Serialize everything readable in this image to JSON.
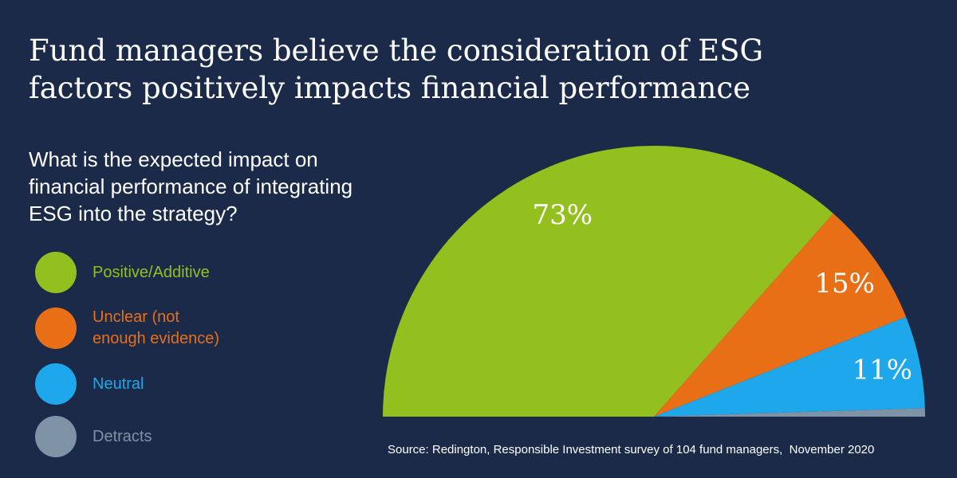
{
  "title": {
    "line1": "Fund managers believe the consideration of ESG",
    "line2": "factors positively impacts financial performance"
  },
  "question": {
    "line1": "What is the expected impact on",
    "line2": "financial performance of integrating",
    "line3": "ESG into the strategy?"
  },
  "legend": [
    {
      "label_line1": "Positive/Additive",
      "label_line2": "",
      "color": "#94c01f"
    },
    {
      "label_line1": "Unclear (not",
      "label_line2": "enough evidence)",
      "color": "#e96f17"
    },
    {
      "label_line1": "Neutral",
      "label_line2": "",
      "color": "#1ea7ea"
    },
    {
      "label_line1": "Detracts",
      "label_line2": "",
      "color": "#7f93a6"
    }
  ],
  "chart_data": {
    "type": "pie",
    "variant": "half-pie",
    "categories": [
      "Positive/Additive",
      "Unclear (not enough evidence)",
      "Neutral",
      "Detracts"
    ],
    "values": [
      73,
      15,
      11,
      1
    ],
    "labels": [
      "73%",
      "15%",
      "11%",
      ""
    ],
    "colors": [
      "#94c01f",
      "#e96f17",
      "#1ea7ea",
      "#7f93a6"
    ],
    "legend_position": "left"
  },
  "source": "Source: Redington, Responsible Investment survey of 104 fund managers,  November 2020"
}
